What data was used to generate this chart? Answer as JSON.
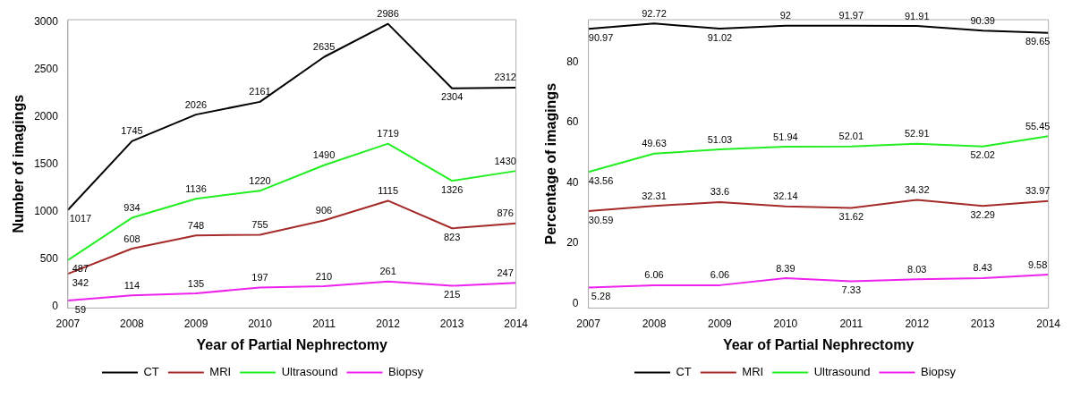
{
  "chart_data": [
    {
      "type": "line",
      "xlabel": "Year of Partial Nephrectomy",
      "ylabel": "Number of imagings",
      "categories": [
        "2007",
        "2008",
        "2009",
        "2010",
        "2011",
        "2012",
        "2013",
        "2014"
      ],
      "series": [
        {
          "name": "CT",
          "color": "#000000",
          "values": [
            1017,
            1745,
            2026,
            2161,
            2635,
            2986,
            2304,
            2312
          ]
        },
        {
          "name": "MRI",
          "color": "#a52a2a",
          "values": [
            342,
            608,
            748,
            755,
            906,
            1115,
            823,
            876
          ]
        },
        {
          "name": "Ultrasound",
          "color": "#22ee22",
          "values": [
            487,
            934,
            1136,
            1220,
            1490,
            1719,
            1326,
            1430
          ]
        },
        {
          "name": "Biopsy",
          "color": "#ee22ee",
          "values": [
            59,
            114,
            135,
            197,
            210,
            261,
            215,
            247
          ]
        }
      ],
      "ylim": [
        -20,
        3030
      ],
      "yticks": [
        0,
        500,
        1000,
        1500,
        2000,
        2500,
        3000
      ],
      "grid": false,
      "legend": "bottom",
      "marker": "none",
      "line_style": "solid",
      "data_labels": true
    },
    {
      "type": "line",
      "xlabel": "Year of Partial Nephrectomy",
      "ylabel": "Percentage of imagings",
      "categories": [
        "2007",
        "2008",
        "2009",
        "2010",
        "2011",
        "2012",
        "2013",
        "2014"
      ],
      "series": [
        {
          "name": "CT",
          "color": "#000000",
          "values": [
            90.97,
            92.72,
            91.02,
            92,
            91.97,
            91.91,
            90.39,
            89.65
          ]
        },
        {
          "name": "MRI",
          "color": "#a52a2a",
          "values": [
            30.59,
            32.31,
            33.6,
            32.14,
            31.62,
            34.32,
            32.29,
            33.97
          ]
        },
        {
          "name": "Ultrasound",
          "color": "#22ee22",
          "values": [
            43.56,
            49.63,
            51.03,
            51.94,
            52.01,
            52.91,
            52.02,
            55.45
          ]
        },
        {
          "name": "Biopsy",
          "color": "#ee22ee",
          "values": [
            5.28,
            6.06,
            6.06,
            8.39,
            7.33,
            8.03,
            8.43,
            9.58
          ]
        }
      ],
      "ylim": [
        -1.5,
        94
      ],
      "yticks": [
        0,
        20,
        40,
        60,
        80
      ],
      "grid": false,
      "legend": "bottom",
      "marker": "none",
      "line_style": "solid",
      "data_labels": true
    }
  ]
}
